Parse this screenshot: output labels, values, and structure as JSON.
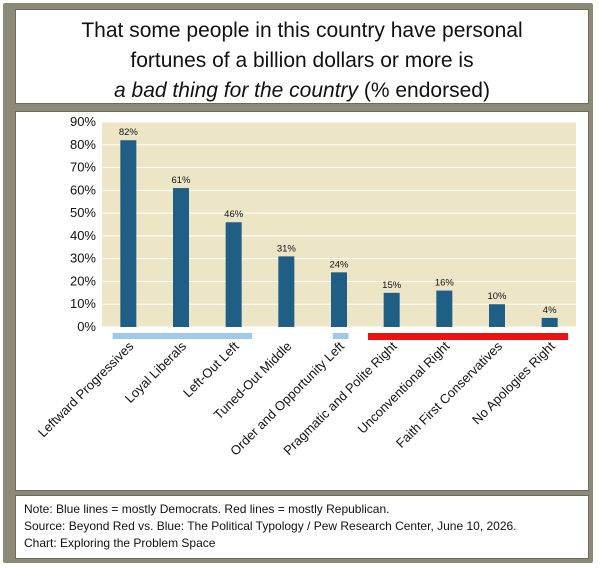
{
  "title": {
    "line1": "That some people in this country have personal",
    "line2": "fortunes of a billion dollars or more is",
    "line3_italic": "a bad thing for the country",
    "line3_rest": " (% endorsed)"
  },
  "notes": {
    "note": "Note: Blue lines = mostly Democrats. Red lines = mostly Republican.",
    "source": "Source: Beyond Red vs. Blue: The Political Typology / Pew Research Center, June 10, 2026.",
    "chart_credit": "Chart: Exploring the Problem Space"
  },
  "colors": {
    "bar": "#1f5f85",
    "plot_bg": "#ece6c6",
    "grid": "#ffffff",
    "democrat_line": "#9fc9ea",
    "republican_line": "#ee1111",
    "frame": "#8c8a76"
  },
  "chart_data": {
    "type": "bar",
    "categories": [
      "Leftward Progressives",
      "Loyal Liberals",
      "Left-Out Left",
      "Tuned-Out Middle",
      "Order and Opportunity Left",
      "Pragmatic and Polite Right",
      "Unconventional Right",
      "Faith First Conservatives",
      "No Apologies Right"
    ],
    "values": [
      82,
      61,
      46,
      31,
      24,
      15,
      16,
      10,
      4
    ],
    "data_labels": [
      "82%",
      "61%",
      "46%",
      "31%",
      "24%",
      "15%",
      "16%",
      "10%",
      "4%"
    ],
    "ylim": [
      0,
      90
    ],
    "yticks": [
      0,
      10,
      20,
      30,
      40,
      50,
      60,
      70,
      80,
      90
    ],
    "ytick_labels": [
      "0%",
      "10%",
      "20%",
      "30%",
      "40%",
      "50%",
      "60%",
      "70%",
      "80%",
      "90%"
    ],
    "grid": true,
    "party_lines": [
      {
        "party": "Democrat",
        "categories": [
          "Leftward Progressives",
          "Loyal Liberals",
          "Left-Out Left"
        ]
      },
      {
        "party": "Democrat",
        "categories": [
          "Order and Opportunity Left"
        ]
      },
      {
        "party": "Republican",
        "categories": [
          "Pragmatic and Polite Right",
          "Unconventional Right",
          "Faith First Conservatives",
          "No Apologies Right"
        ]
      }
    ]
  }
}
